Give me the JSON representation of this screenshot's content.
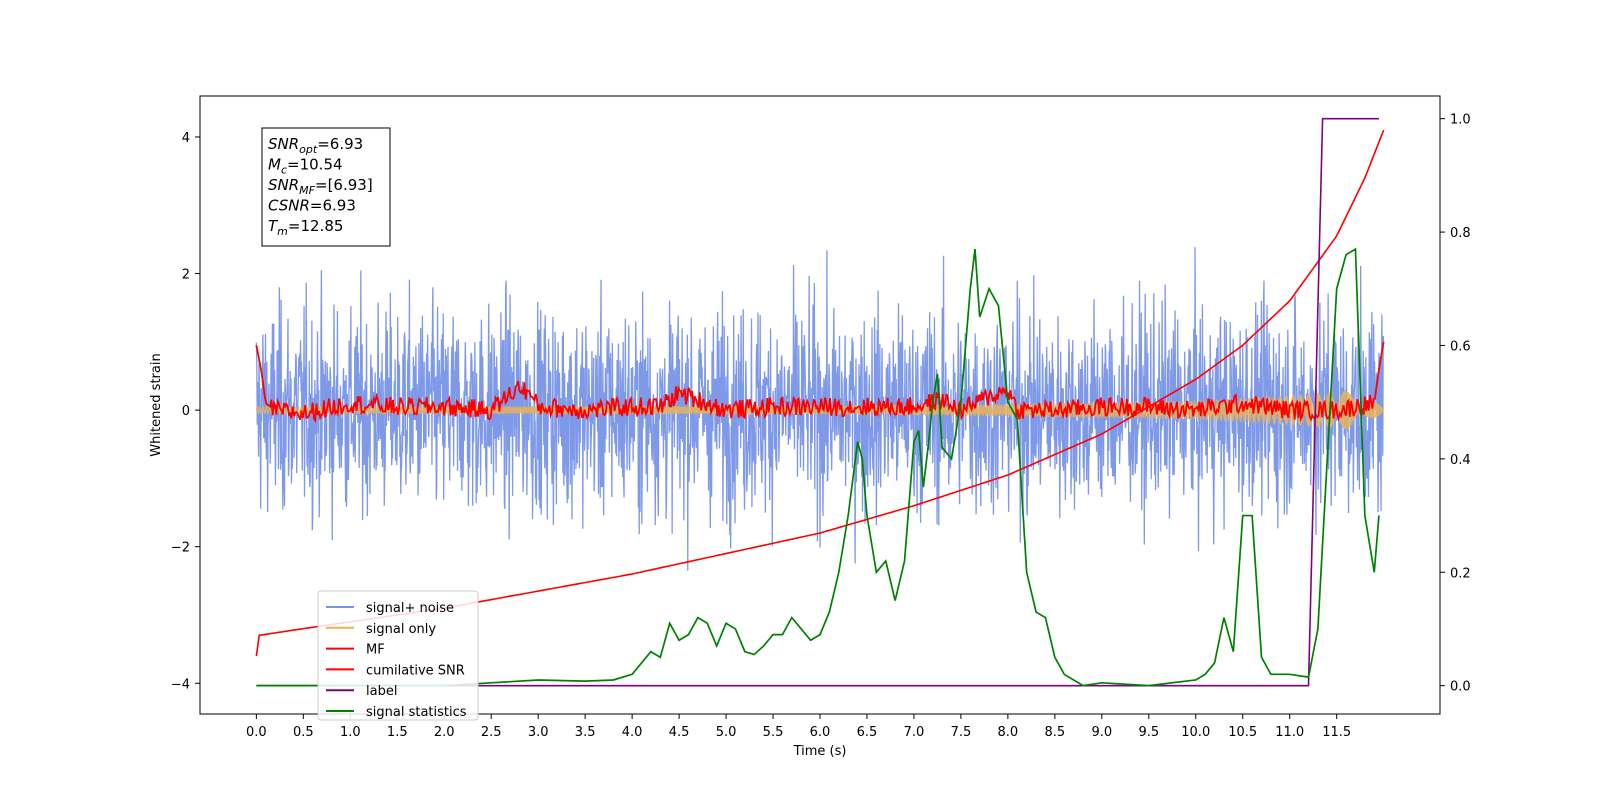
{
  "chart_data": {
    "type": "line",
    "xlabel": "Time (s)",
    "ylabel": "Whitened strain",
    "ylabel_right": "",
    "xlim": [
      -0.6,
      12.6
    ],
    "ylim": [
      -4.45,
      4.6
    ],
    "ylim_right": [
      -0.05,
      1.04
    ],
    "x_ticks": [
      "0.0",
      "0.5",
      "1.0",
      "1.5",
      "2.0",
      "2.5",
      "3.0",
      "3.5",
      "4.0",
      "4.5",
      "5.0",
      "5.5",
      "6.0",
      "6.5",
      "7.0",
      "7.5",
      "8.0",
      "8.5",
      "9.0",
      "9.5",
      "10.0",
      "10.5",
      "11.0",
      "11.5"
    ],
    "y_ticks": [
      "4",
      "2",
      "0",
      "−2",
      "−4"
    ],
    "y_ticks_values": [
      4,
      2,
      0,
      -2,
      -4
    ],
    "y_right_ticks": [
      "1.0",
      "0.8",
      "0.6",
      "0.4",
      "0.2",
      "0.0"
    ],
    "y_right_ticks_values": [
      1.0,
      0.8,
      0.6,
      0.4,
      0.2,
      0.0
    ],
    "grid": false,
    "legend_position": "lower-left",
    "colors": {
      "signal_noise": "#7893e8",
      "signal_only": "#e6b35c",
      "mf": "#ff0000",
      "cumulative_snr": "#ff0000",
      "label": "#800080",
      "signal_statistics": "#008000"
    },
    "info_box": [
      {
        "name": "SNR",
        "sub": "opt",
        "value": "=6.93"
      },
      {
        "name": "M",
        "sub": "c",
        "value": "=10.54"
      },
      {
        "name": "SNR",
        "sub": "MF",
        "value": "=[6.93]"
      },
      {
        "name": "CSNR",
        "sub": "",
        "value": "=6.93"
      },
      {
        "name": "T",
        "sub": "m",
        "value": "=12.85"
      }
    ],
    "series": [
      {
        "name": "signal+ noise",
        "axis": "left",
        "description_range": [
          -2.8,
          2.8
        ],
        "x_range": [
          0,
          12.0
        ]
      },
      {
        "name": "signal only",
        "axis": "left",
        "envelope": {
          "x": [
            0,
            6,
            8,
            10,
            11,
            12.0
          ],
          "amp": [
            0.05,
            0.06,
            0.09,
            0.14,
            0.22,
            0.32
          ]
        }
      },
      {
        "name": "MF",
        "axis": "left",
        "x": [
          0.0,
          0.05,
          0.1,
          0.2,
          0.5,
          1.0,
          1.5,
          2.0,
          2.5,
          2.8,
          2.9,
          3.0,
          3.5,
          4.0,
          4.3,
          4.5,
          5.0,
          5.5,
          6.0,
          6.5,
          7.0,
          7.3,
          7.5,
          7.8,
          8.0,
          8.1,
          8.5,
          9.0,
          9.5,
          10.0,
          10.5,
          11.0,
          11.5,
          11.9,
          11.95,
          12.0
        ],
        "values": [
          0.95,
          0.6,
          0.1,
          0.0,
          -0.05,
          0.1,
          0.05,
          0.05,
          0.0,
          0.35,
          0.25,
          0.05,
          0.0,
          0.05,
          0.05,
          0.25,
          0.0,
          0.05,
          0.05,
          0.05,
          0.05,
          0.15,
          0.0,
          0.2,
          0.3,
          0.0,
          0.0,
          0.05,
          0.05,
          0.0,
          0.1,
          0.0,
          0.0,
          0.1,
          0.6,
          1.0
        ]
      },
      {
        "name": "cumilative SNR",
        "axis": "left",
        "x": [
          0.0,
          0.01,
          0.02,
          0.5,
          1.0,
          2.0,
          3.0,
          4.0,
          5.0,
          6.0,
          7.0,
          8.0,
          9.0,
          10.0,
          10.5,
          11.0,
          11.5,
          11.8,
          12.0
        ],
        "values": [
          -3.6,
          -3.35,
          -3.3,
          -3.2,
          -3.1,
          -2.9,
          -2.65,
          -2.4,
          -2.1,
          -1.8,
          -1.4,
          -0.95,
          -0.35,
          0.45,
          0.95,
          1.6,
          2.55,
          3.4,
          4.1
        ]
      },
      {
        "name": "label",
        "axis": "right",
        "x": [
          0.0,
          11.2,
          11.35,
          11.95
        ],
        "values": [
          0.0,
          0.0,
          1.0,
          1.0
        ]
      },
      {
        "name": "signal statistics",
        "axis": "right",
        "x": [
          0.0,
          0.5,
          1.0,
          2.0,
          2.5,
          3.0,
          3.5,
          3.8,
          4.0,
          4.1,
          4.2,
          4.3,
          4.4,
          4.5,
          4.6,
          4.7,
          4.8,
          4.9,
          5.0,
          5.1,
          5.2,
          5.3,
          5.4,
          5.5,
          5.6,
          5.7,
          5.8,
          5.9,
          6.0,
          6.1,
          6.2,
          6.3,
          6.4,
          6.45,
          6.5,
          6.6,
          6.7,
          6.8,
          6.9,
          7.0,
          7.05,
          7.1,
          7.15,
          7.2,
          7.25,
          7.3,
          7.4,
          7.5,
          7.6,
          7.65,
          7.7,
          7.8,
          7.9,
          8.0,
          8.1,
          8.2,
          8.3,
          8.4,
          8.5,
          8.6,
          8.8,
          9.0,
          9.5,
          10.0,
          10.1,
          10.2,
          10.3,
          10.4,
          10.5,
          10.6,
          10.7,
          10.8,
          11.0,
          11.2,
          11.3,
          11.4,
          11.5,
          11.6,
          11.7,
          11.8,
          11.9,
          11.95
        ],
        "values": [
          0.0,
          0.0,
          0.0,
          0.0,
          0.005,
          0.01,
          0.008,
          0.01,
          0.02,
          0.04,
          0.06,
          0.05,
          0.11,
          0.08,
          0.09,
          0.12,
          0.11,
          0.07,
          0.11,
          0.1,
          0.06,
          0.055,
          0.07,
          0.09,
          0.09,
          0.12,
          0.1,
          0.08,
          0.09,
          0.13,
          0.2,
          0.3,
          0.43,
          0.4,
          0.3,
          0.2,
          0.22,
          0.15,
          0.22,
          0.43,
          0.45,
          0.35,
          0.42,
          0.5,
          0.55,
          0.42,
          0.4,
          0.5,
          0.7,
          0.77,
          0.65,
          0.7,
          0.67,
          0.5,
          0.47,
          0.2,
          0.13,
          0.12,
          0.05,
          0.02,
          0.0,
          0.005,
          0.0,
          0.01,
          0.02,
          0.04,
          0.12,
          0.06,
          0.3,
          0.3,
          0.05,
          0.02,
          0.02,
          0.015,
          0.1,
          0.4,
          0.7,
          0.76,
          0.77,
          0.3,
          0.2,
          0.3
        ]
      }
    ]
  }
}
